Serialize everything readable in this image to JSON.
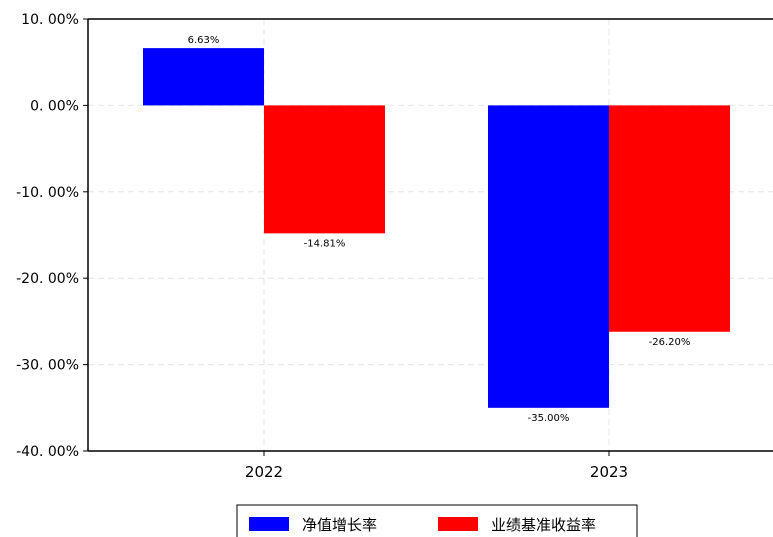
{
  "chart_data": {
    "type": "bar",
    "categories": [
      "2022",
      "2023"
    ],
    "series": [
      {
        "name": "净值增长率",
        "color": "#0000ff",
        "values": [
          6.63,
          -35.0
        ],
        "labels": [
          "6.63%",
          "-35.00%"
        ]
      },
      {
        "name": "业绩基准收益率",
        "color": "#ff0000",
        "values": [
          -14.81,
          -26.2
        ],
        "labels": [
          "-14.81%",
          "-26.20%"
        ]
      }
    ],
    "ylim": [
      -40,
      10
    ],
    "yticks": [
      10,
      0,
      -10,
      -20,
      -30,
      -40
    ],
    "ytick_labels": [
      "10. 00%",
      "0. 00%",
      "-10. 00%",
      "-20. 00%",
      "-30. 00%",
      "-40. 00%"
    ],
    "grid": true,
    "legend_position": "bottom-center",
    "title": "",
    "xlabel": "",
    "ylabel": ""
  }
}
